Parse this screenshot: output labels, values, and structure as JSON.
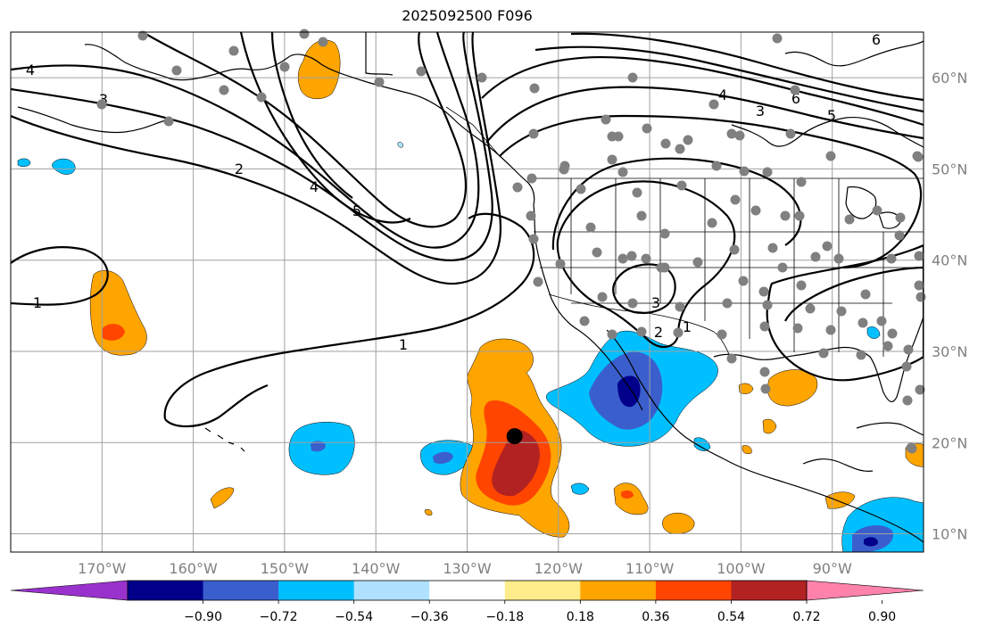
{
  "title": "2025092500 F096",
  "map": {
    "lon_range": [
      -180,
      -80
    ],
    "lat_range": [
      8,
      65
    ],
    "lon_ticks": [
      {
        "value": -170,
        "label": "170°W"
      },
      {
        "value": -160,
        "label": "160°W"
      },
      {
        "value": -150,
        "label": "150°W"
      },
      {
        "value": -140,
        "label": "140°W"
      },
      {
        "value": -130,
        "label": "130°W"
      },
      {
        "value": -120,
        "label": "120°W"
      },
      {
        "value": -110,
        "label": "110°W"
      },
      {
        "value": -100,
        "label": "100°W"
      },
      {
        "value": -90,
        "label": "90°W"
      }
    ],
    "lat_ticks": [
      {
        "value": 10,
        "label": "10°N"
      },
      {
        "value": 20,
        "label": "20°N"
      },
      {
        "value": 30,
        "label": "30°N"
      },
      {
        "value": 40,
        "label": "40°N"
      },
      {
        "value": 50,
        "label": "50°N"
      },
      {
        "value": 60,
        "label": "60°N"
      }
    ],
    "grid": true,
    "marker": {
      "lon": -124.8,
      "lat": 20.7,
      "color": "#000000"
    },
    "station_color": "#808080",
    "contour_labels": [
      "1",
      "2",
      "3",
      "4",
      "5",
      "6"
    ]
  },
  "colorbar": {
    "colors": [
      "#9932cc",
      "#00008b",
      "#3a5fcd",
      "#00bfff",
      "#b0e2ff",
      "#ffffff",
      "#ffec8b",
      "#ffa500",
      "#ff4500",
      "#b22222",
      "#ff82ab"
    ],
    "tick_labels": [
      "−0.90",
      "−0.72",
      "−0.54",
      "−0.36",
      "−0.18",
      "0.18",
      "0.36",
      "0.54",
      "0.72",
      "0.90"
    ]
  }
}
